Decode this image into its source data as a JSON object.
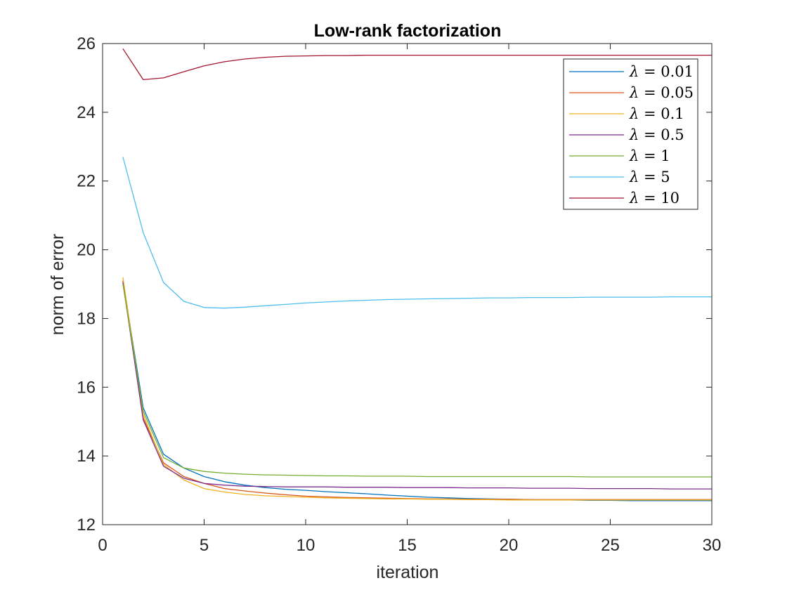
{
  "chart_data": {
    "type": "line",
    "title": "Low-rank factorization",
    "xlabel": "iteration",
    "ylabel": "norm of error",
    "xlim": [
      0,
      30
    ],
    "ylim": [
      12,
      26
    ],
    "xticks": [
      0,
      5,
      10,
      15,
      20,
      25,
      30
    ],
    "yticks": [
      12,
      14,
      16,
      18,
      20,
      22,
      24,
      26
    ],
    "grid": false,
    "legend_position": "top-right",
    "x": [
      1,
      2,
      3,
      4,
      5,
      6,
      7,
      8,
      9,
      10,
      11,
      12,
      13,
      14,
      15,
      16,
      17,
      18,
      19,
      20,
      21,
      22,
      23,
      24,
      25,
      26,
      27,
      28,
      29,
      30
    ],
    "series": [
      {
        "name": "λ = 0.01",
        "symbol": "λ",
        "value_text": " = 0.01",
        "color": "#0072BD",
        "values": [
          19.1,
          15.4,
          14.05,
          13.65,
          13.4,
          13.25,
          13.15,
          13.08,
          13.03,
          13.0,
          12.96,
          12.93,
          12.9,
          12.86,
          12.83,
          12.8,
          12.78,
          12.76,
          12.75,
          12.74,
          12.73,
          12.72,
          12.72,
          12.71,
          12.71,
          12.7,
          12.7,
          12.7,
          12.7,
          12.7
        ]
      },
      {
        "name": "λ = 0.05",
        "symbol": "λ",
        "value_text": " = 0.05",
        "color": "#D95319",
        "values": [
          19.1,
          15.1,
          13.8,
          13.4,
          13.2,
          13.05,
          12.98,
          12.92,
          12.87,
          12.83,
          12.81,
          12.79,
          12.78,
          12.77,
          12.76,
          12.75,
          12.75,
          12.74,
          12.74,
          12.74,
          12.73,
          12.73,
          12.73,
          12.73,
          12.73,
          12.73,
          12.73,
          12.73,
          12.73,
          12.73
        ]
      },
      {
        "name": "λ = 0.1",
        "symbol": "λ",
        "value_text": " = 0.1",
        "color": "#EDB120",
        "values": [
          19.2,
          15.2,
          13.75,
          13.3,
          13.05,
          12.95,
          12.88,
          12.84,
          12.82,
          12.8,
          12.78,
          12.77,
          12.76,
          12.75,
          12.75,
          12.74,
          12.74,
          12.73,
          12.73,
          12.72,
          12.72,
          12.72,
          12.72,
          12.72,
          12.72,
          12.72,
          12.72,
          12.72,
          12.72,
          12.72
        ]
      },
      {
        "name": "λ = 0.5",
        "symbol": "λ",
        "value_text": " = 0.5",
        "color": "#7E2F8E",
        "values": [
          19.05,
          15.05,
          13.7,
          13.35,
          13.2,
          13.15,
          13.12,
          13.11,
          13.1,
          13.1,
          13.1,
          13.09,
          13.09,
          13.09,
          13.08,
          13.08,
          13.08,
          13.07,
          13.07,
          13.07,
          13.06,
          13.06,
          13.06,
          13.05,
          13.05,
          13.05,
          13.05,
          13.04,
          13.04,
          13.04
        ]
      },
      {
        "name": "λ = 1",
        "symbol": "λ",
        "value_text": " = 1",
        "color": "#77AC30",
        "values": [
          19.0,
          15.3,
          13.95,
          13.65,
          13.55,
          13.5,
          13.47,
          13.45,
          13.44,
          13.43,
          13.42,
          13.42,
          13.41,
          13.41,
          13.41,
          13.4,
          13.4,
          13.4,
          13.4,
          13.4,
          13.4,
          13.4,
          13.4,
          13.39,
          13.39,
          13.39,
          13.39,
          13.39,
          13.39,
          13.39
        ]
      },
      {
        "name": "λ = 5",
        "symbol": "λ",
        "value_text": " = 5",
        "color": "#4DBEEE",
        "values": [
          22.7,
          20.5,
          19.05,
          18.5,
          18.32,
          18.3,
          18.33,
          18.37,
          18.41,
          18.45,
          18.48,
          18.51,
          18.53,
          18.55,
          18.56,
          18.57,
          18.58,
          18.59,
          18.6,
          18.6,
          18.61,
          18.61,
          18.61,
          18.62,
          18.62,
          18.62,
          18.62,
          18.63,
          18.63,
          18.63
        ]
      },
      {
        "name": "λ = 10",
        "symbol": "λ",
        "value_text": " = 10",
        "color": "#A2142F",
        "values": [
          25.85,
          24.95,
          25.0,
          25.18,
          25.35,
          25.47,
          25.55,
          25.6,
          25.63,
          25.64,
          25.65,
          25.65,
          25.66,
          25.66,
          25.66,
          25.66,
          25.66,
          25.66,
          25.66,
          25.66,
          25.66,
          25.66,
          25.66,
          25.66,
          25.66,
          25.66,
          25.66,
          25.66,
          25.66,
          25.66
        ]
      }
    ]
  }
}
